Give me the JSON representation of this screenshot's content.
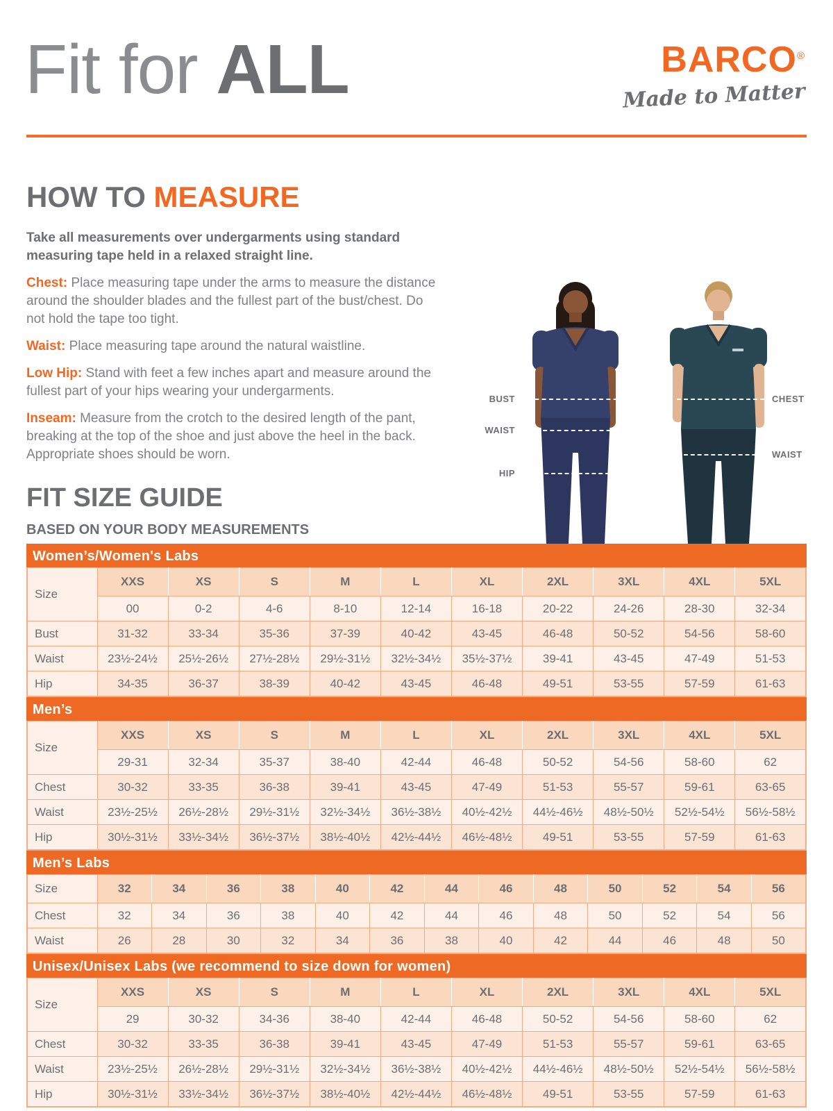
{
  "header": {
    "title_light": "Fit for ",
    "title_bold": "ALL",
    "brand": "BARCO",
    "brand_reg": "®",
    "brand_tagline": "Made to Matter"
  },
  "how_to_measure": {
    "heading_gray": "HOW TO ",
    "heading_orange": "MEASURE",
    "intro": "Take all measurements over undergarments using standard measuring tape held in a relaxed straight line.",
    "items": [
      {
        "label": "Chest:",
        "text": " Place measuring tape under the arms to measure the distance around the shoulder blades and the fullest part of the bust/chest. Do not hold the tape too tight."
      },
      {
        "label": "Waist:",
        "text": " Place measuring tape around the natural waistline."
      },
      {
        "label": "Low Hip:",
        "text": " Stand with feet a few inches apart and measure around the fullest part of your hips wearing your undergarments."
      },
      {
        "label": "Inseam:",
        "text": " Measure from the crotch to the desired length of the pant, breaking at the top of the shoe and just above the heel in the back. Appropriate shoes should be worn."
      }
    ]
  },
  "figure": {
    "left_labels": [
      "BUST",
      "WAIST",
      "HIP"
    ],
    "right_labels": [
      "CHEST",
      "WAIST"
    ]
  },
  "size_guide": {
    "heading": "FIT SIZE GUIDE",
    "subheading": "BASED ON YOUR BODY MEASUREMENTS",
    "tables": [
      {
        "band": "Women’s/Women's Labs",
        "size_row": [
          "Size",
          "XXS",
          "XS",
          "S",
          "M",
          "L",
          "XL",
          "2XL",
          "3XL",
          "4XL",
          "5XL"
        ],
        "rows": [
          [
            "",
            "00",
            "0-2",
            "4-6",
            "8-10",
            "12-14",
            "16-18",
            "20-22",
            "24-26",
            "28-30",
            "32-34"
          ],
          [
            "Bust",
            "31-32",
            "33-34",
            "35-36",
            "37-39",
            "40-42",
            "43-45",
            "46-48",
            "50-52",
            "54-56",
            "58-60"
          ],
          [
            "Waist",
            "23½-24½",
            "25½-26½",
            "27½-28½",
            "29½-31½",
            "32½-34½",
            "35½-37½",
            "39-41",
            "43-45",
            "47-49",
            "51-53"
          ],
          [
            "Hip",
            "34-35",
            "36-37",
            "38-39",
            "40-42",
            "43-45",
            "46-48",
            "49-51",
            "53-55",
            "57-59",
            "61-63"
          ]
        ]
      },
      {
        "band": "Men’s",
        "size_row": [
          "Size",
          "XXS",
          "XS",
          "S",
          "M",
          "L",
          "XL",
          "2XL",
          "3XL",
          "4XL",
          "5XL"
        ],
        "rows": [
          [
            "",
            "29-31",
            "32-34",
            "35-37",
            "38-40",
            "42-44",
            "46-48",
            "50-52",
            "54-56",
            "58-60",
            "62"
          ],
          [
            "Chest",
            "30-32",
            "33-35",
            "36-38",
            "39-41",
            "43-45",
            "47-49",
            "51-53",
            "55-57",
            "59-61",
            "63-65"
          ],
          [
            "Waist",
            "23½-25½",
            "26½-28½",
            "29½-31½",
            "32½-34½",
            "36½-38½",
            "40½-42½",
            "44½-46½",
            "48½-50½",
            "52½-54½",
            "56½-58½"
          ],
          [
            "Hip",
            "30½-31½",
            "33½-34½",
            "36½-37½",
            "38½-40½",
            "42½-44½",
            "46½-48½",
            "49-51",
            "53-55",
            "57-59",
            "61-63"
          ]
        ]
      },
      {
        "band": "Men’s Labs",
        "size_row": [
          "Size",
          "32",
          "34",
          "36",
          "38",
          "40",
          "42",
          "44",
          "46",
          "48",
          "50",
          "52",
          "54",
          "56"
        ],
        "rows": [
          [
            "Chest",
            "32",
            "34",
            "36",
            "38",
            "40",
            "42",
            "44",
            "46",
            "48",
            "50",
            "52",
            "54",
            "56"
          ],
          [
            "Waist",
            "26",
            "28",
            "30",
            "32",
            "34",
            "36",
            "38",
            "40",
            "42",
            "44",
            "46",
            "48",
            "50"
          ]
        ]
      },
      {
        "band": "Unisex/Unisex Labs (we recommend to size down for women)",
        "size_row": [
          "Size",
          "XXS",
          "XS",
          "S",
          "M",
          "L",
          "XL",
          "2XL",
          "3XL",
          "4XL",
          "5XL"
        ],
        "rows": [
          [
            "",
            "29",
            "30-32",
            "34-36",
            "38-40",
            "42-44",
            "46-48",
            "50-52",
            "54-56",
            "58-60",
            "62"
          ],
          [
            "Chest",
            "30-32",
            "33-35",
            "36-38",
            "39-41",
            "43-45",
            "47-49",
            "51-53",
            "55-57",
            "59-61",
            "63-65"
          ],
          [
            "Waist",
            "23½-25½",
            "26½-28½",
            "29½-31½",
            "32½-34½",
            "36½-38½",
            "40½-42½",
            "44½-46½",
            "48½-50½",
            "52½-54½",
            "56½-58½"
          ],
          [
            "Hip",
            "30½-31½",
            "33½-34½",
            "36½-37½",
            "38½-40½",
            "42½-44½",
            "46½-48½",
            "49-51",
            "53-55",
            "57-59",
            "61-63"
          ]
        ]
      }
    ]
  },
  "colors": {
    "orange": "#f26822",
    "band_orange": "#ee6a24",
    "heading_gray": "#6d6e71",
    "body_gray": "#808184",
    "row_light": "#fdf0e8",
    "row_mid": "#fce4d4",
    "header_row": "#fad8bd",
    "table_border": "#f3aa80",
    "scrub_navy": "#35406b",
    "scrub_teal": "#2a4754"
  }
}
